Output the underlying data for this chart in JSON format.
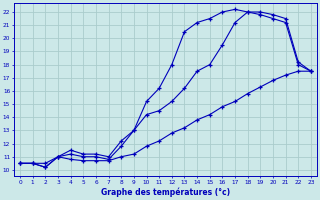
{
  "title": "Graphe des températures (°c)",
  "background_color": "#cce8e8",
  "grid_color": "#aacccc",
  "line_color": "#0000bb",
  "xlim": [
    -0.5,
    23.5
  ],
  "ylim": [
    9.5,
    22.7
  ],
  "xticks": [
    0,
    1,
    2,
    3,
    4,
    5,
    6,
    7,
    8,
    9,
    10,
    11,
    12,
    13,
    14,
    15,
    16,
    17,
    18,
    19,
    20,
    21,
    22,
    23
  ],
  "yticks": [
    10,
    11,
    12,
    13,
    14,
    15,
    16,
    17,
    18,
    19,
    20,
    21,
    22
  ],
  "line1_x": [
    0,
    1,
    2,
    3,
    4,
    5,
    6,
    7,
    8,
    9,
    10,
    11,
    12,
    13,
    14,
    15,
    16,
    17,
    18,
    19,
    20,
    21,
    22,
    23
  ],
  "line1_y": [
    10.5,
    10.5,
    10.5,
    11.0,
    10.8,
    10.7,
    10.7,
    10.7,
    11.0,
    11.2,
    11.8,
    12.2,
    12.8,
    13.2,
    13.8,
    14.2,
    14.8,
    15.2,
    15.8,
    16.3,
    16.8,
    17.2,
    17.5,
    17.5
  ],
  "line2_x": [
    0,
    1,
    2,
    3,
    4,
    5,
    6,
    7,
    8,
    9,
    10,
    11,
    12,
    13,
    14,
    15,
    16,
    17,
    18,
    19,
    20,
    21,
    22,
    23
  ],
  "line2_y": [
    10.5,
    10.5,
    10.2,
    11.0,
    11.2,
    11.0,
    11.0,
    10.8,
    11.8,
    13.0,
    14.2,
    14.5,
    15.2,
    16.2,
    17.5,
    18.0,
    19.5,
    21.2,
    22.0,
    22.0,
    21.8,
    21.5,
    18.2,
    17.5
  ],
  "line3_x": [
    0,
    1,
    2,
    3,
    4,
    5,
    6,
    7,
    8,
    9,
    10,
    11,
    12,
    13,
    14,
    15,
    16,
    17,
    18,
    19,
    20,
    21,
    22,
    23
  ],
  "line3_y": [
    10.5,
    10.5,
    10.2,
    11.0,
    11.5,
    11.2,
    11.2,
    11.0,
    12.2,
    13.0,
    15.2,
    16.2,
    18.0,
    20.5,
    21.2,
    21.5,
    22.0,
    22.2,
    22.0,
    21.8,
    21.5,
    21.2,
    18.0,
    17.5
  ]
}
